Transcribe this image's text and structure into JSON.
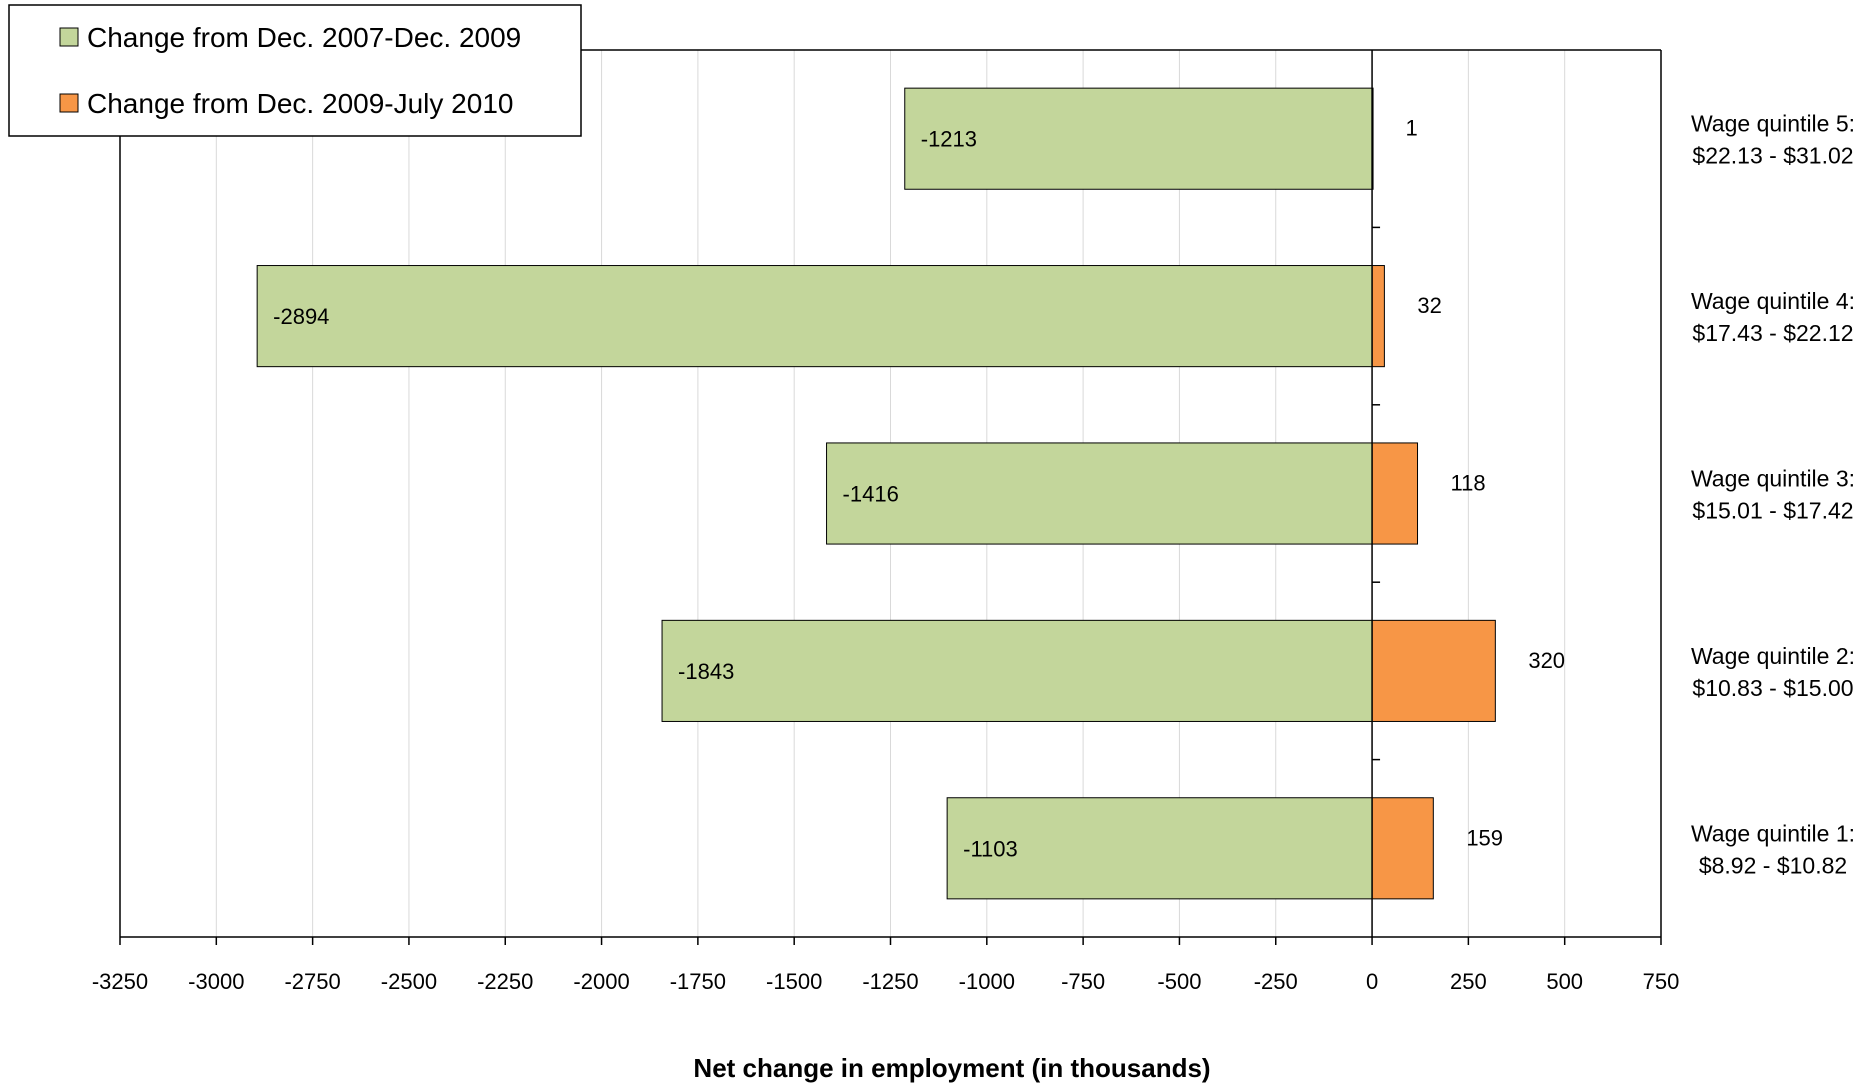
{
  "chart_data": {
    "type": "bar",
    "orientation": "horizontal",
    "categories": [
      [
        "Wage quintile 5:",
        "$22.13 - $31.02"
      ],
      [
        "Wage quintile 4:",
        "$17.43 - $22.12"
      ],
      [
        "Wage quintile 3:",
        "$15.01 - $17.42"
      ],
      [
        "Wage quintile 2:",
        "$10.83 - $15.00"
      ],
      [
        "Wage quintile 1:",
        "$8.92 - $10.82"
      ]
    ],
    "series": [
      {
        "name": "Change from Dec. 2007-Dec. 2009",
        "values": [
          -1213,
          -2894,
          -1416,
          -1843,
          -1103
        ],
        "color": "#c3d69b"
      },
      {
        "name": "Change from Dec. 2009-July 2010",
        "values": [
          1,
          32,
          118,
          320,
          159
        ],
        "color": "#f79646"
      }
    ],
    "xlabel": "Net change in employment (in thousands)",
    "ylabel": "",
    "xlim": [
      -3250,
      750
    ],
    "xticks": [
      -3250,
      -3000,
      -2750,
      -2500,
      -2250,
      -2000,
      -1750,
      -1500,
      -1250,
      -1000,
      -750,
      -500,
      -250,
      0,
      250,
      500,
      750
    ],
    "grid": true,
    "legend_position": "top-left"
  }
}
